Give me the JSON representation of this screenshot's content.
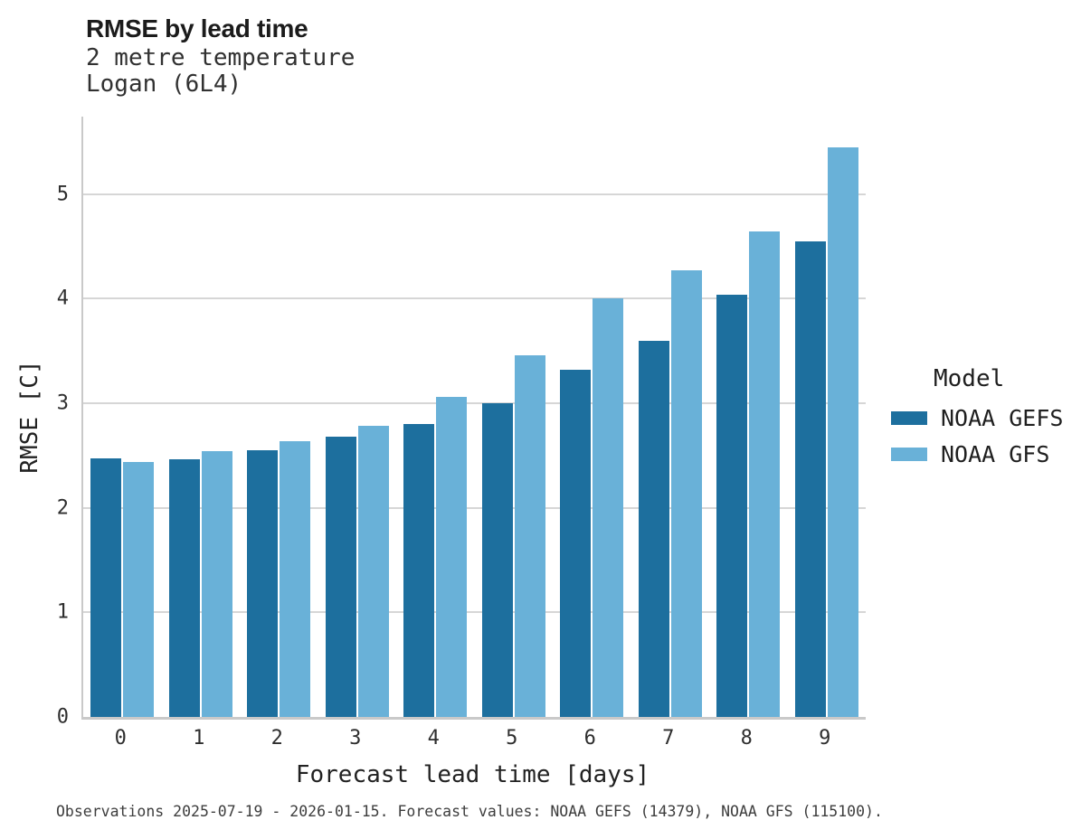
{
  "header": {
    "title": "RMSE by lead time",
    "subtitle1": "2 metre temperature",
    "subtitle2": "Logan (6L4)"
  },
  "chart_data": {
    "type": "bar",
    "title": "RMSE by lead time",
    "subtitle": [
      "2 metre temperature",
      "Logan (6L4)"
    ],
    "categories": [
      "0",
      "1",
      "2",
      "3",
      "4",
      "5",
      "6",
      "7",
      "8",
      "9"
    ],
    "series": [
      {
        "name": "NOAA GEFS",
        "color": "#1d6f9e",
        "values": [
          2.47,
          2.46,
          2.55,
          2.68,
          2.8,
          3.0,
          3.32,
          3.6,
          4.04,
          4.55
        ]
      },
      {
        "name": "NOAA GFS",
        "color": "#69b1d8",
        "values": [
          2.44,
          2.54,
          2.64,
          2.78,
          3.06,
          3.46,
          4.0,
          4.27,
          4.64,
          5.45
        ]
      }
    ],
    "xlabel": "Forecast lead time [days]",
    "ylabel": "RMSE [C]",
    "ylim": [
      0,
      5.74
    ],
    "yticks": [
      0,
      1,
      2,
      3,
      4,
      5
    ],
    "grid": true,
    "legend_title": "Model",
    "legend_position": "right"
  },
  "footer": {
    "note": "Observations 2025-07-19 - 2026-01-15. Forecast values: NOAA GEFS (14379), NOAA GFS (115100)."
  },
  "colors": {
    "gefs": "#1d6f9e",
    "gfs": "#69b1d8",
    "gridline": "#d6d6d6",
    "axis": "#c9c9c9"
  }
}
